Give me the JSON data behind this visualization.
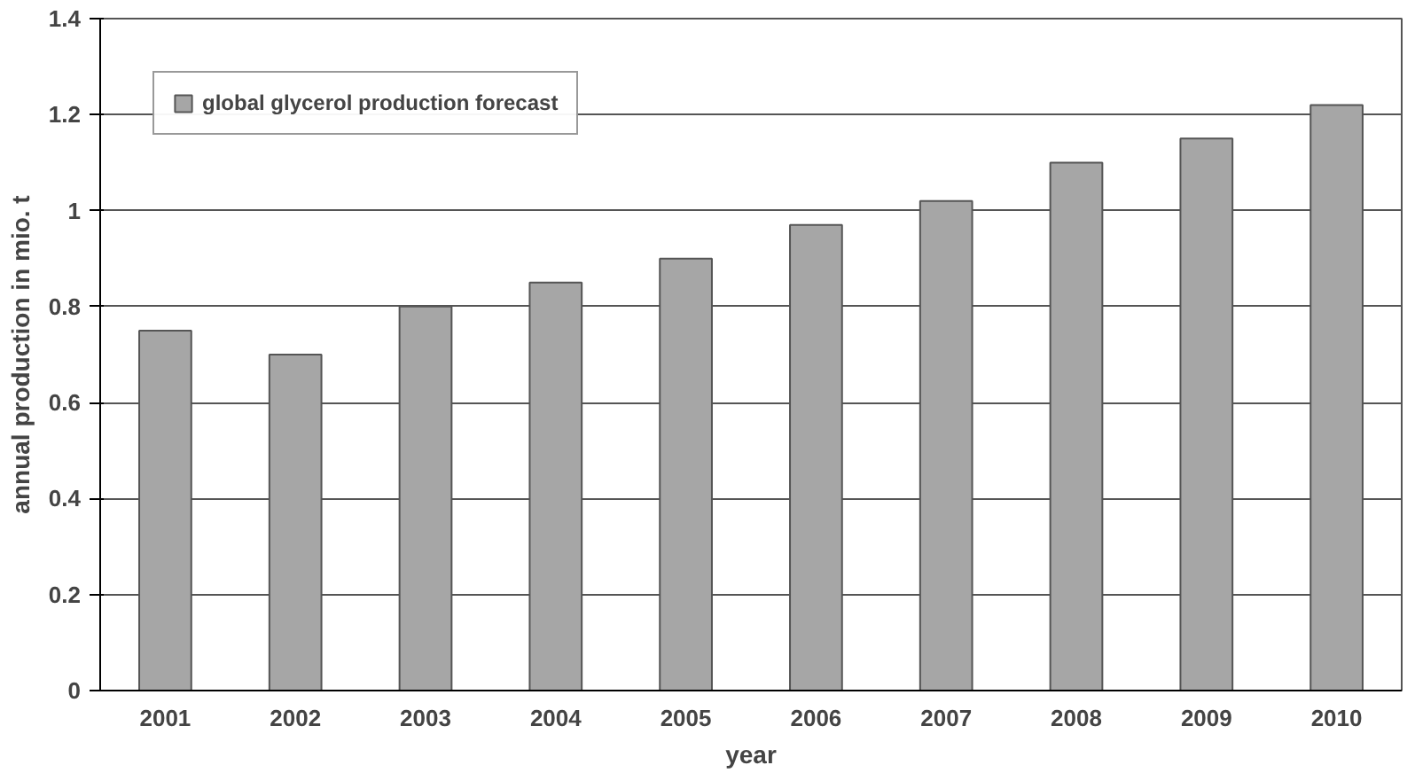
{
  "chart_data": {
    "type": "bar",
    "xlabel": "year",
    "ylabel": "annual production in mio. t",
    "categories": [
      "2001",
      "2002",
      "2003",
      "2004",
      "2005",
      "2006",
      "2007",
      "2008",
      "2009",
      "2010"
    ],
    "series": [
      {
        "name": "global glycerol production forecast",
        "color": "#a6a6a6",
        "values": [
          0.75,
          0.7,
          0.8,
          0.85,
          0.9,
          0.97,
          1.02,
          1.1,
          1.15,
          1.22
        ]
      }
    ],
    "ylim": [
      0,
      1.4
    ],
    "yticks": [
      0,
      0.2,
      0.4,
      0.6,
      0.8,
      1,
      1.2,
      1.4
    ],
    "grid": "y",
    "legend": "top left"
  }
}
